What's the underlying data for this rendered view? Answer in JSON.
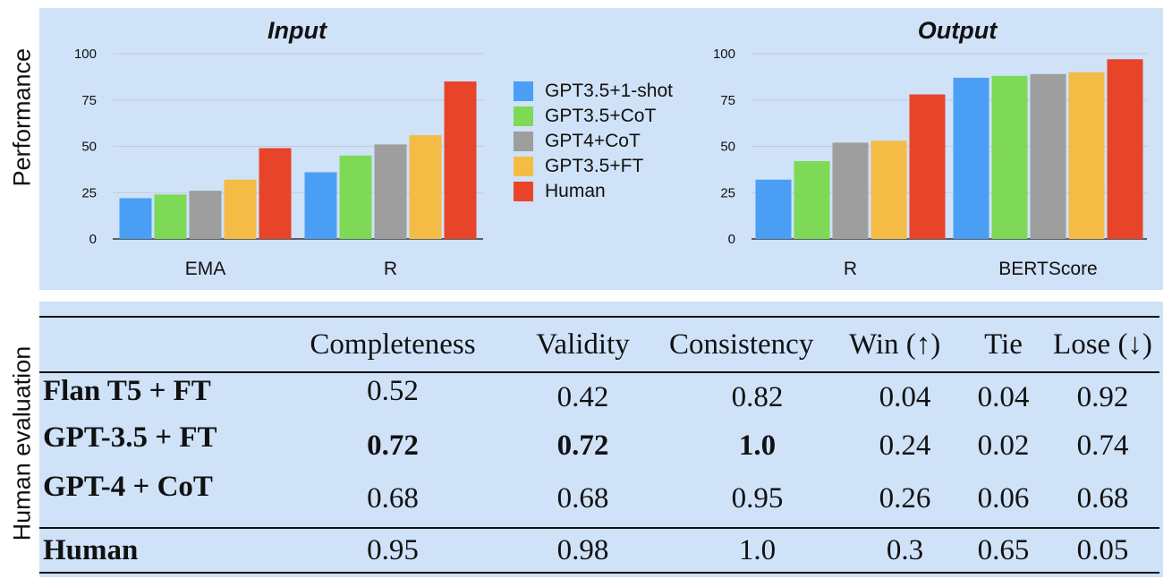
{
  "ylabel_top": "Performance",
  "ylabel_bottom": "Human evaluation",
  "legend": [
    {
      "label": "GPT3.5+1-shot",
      "color": "#4a9ff5"
    },
    {
      "label": "GPT3.5+CoT",
      "color": "#7ed957"
    },
    {
      "label": "GPT4+CoT",
      "color": "#9e9e9e"
    },
    {
      "label": "GPT3.5+FT",
      "color": "#f4bc45"
    },
    {
      "label": "Human",
      "color": "#e8442a"
    }
  ],
  "chart_data": [
    {
      "type": "bar",
      "title": "Input",
      "categories": [
        "EMA",
        "R"
      ],
      "ylabel": "Performance",
      "ylim": [
        0,
        100
      ],
      "yticks": [
        0,
        25,
        50,
        75,
        100
      ],
      "series": [
        {
          "name": "GPT3.5+1-shot",
          "values": [
            22,
            36
          ]
        },
        {
          "name": "GPT3.5+CoT",
          "values": [
            24,
            45
          ]
        },
        {
          "name": "GPT4+CoT",
          "values": [
            26,
            51
          ]
        },
        {
          "name": "GPT3.5+FT",
          "values": [
            32,
            56
          ]
        },
        {
          "name": "Human",
          "values": [
            49,
            85
          ]
        }
      ]
    },
    {
      "type": "bar",
      "title": "Output",
      "categories": [
        "R",
        "BERTScore"
      ],
      "ylim": [
        0,
        100
      ],
      "yticks": [
        0,
        25,
        50,
        75,
        100
      ],
      "series": [
        {
          "name": "GPT3.5+1-shot",
          "values": [
            32,
            87
          ]
        },
        {
          "name": "GPT3.5+CoT",
          "values": [
            42,
            88
          ]
        },
        {
          "name": "GPT4+CoT",
          "values": [
            52,
            89
          ]
        },
        {
          "name": "GPT3.5+FT",
          "values": [
            53,
            90
          ]
        },
        {
          "name": "Human",
          "values": [
            78,
            97
          ]
        }
      ]
    },
    {
      "type": "table",
      "columns": [
        "",
        "Completeness",
        "Validity",
        "Consistency",
        "Win (↑)",
        "Tie",
        "Lose (↓)"
      ],
      "rows": [
        {
          "name": "Flan T5 + FT",
          "values": [
            "0.52",
            "0.42",
            "0.82",
            "0.04",
            "0.04",
            "0.92"
          ]
        },
        {
          "name": "GPT-3.5 + FT",
          "values": [
            "0.72",
            "0.72",
            "1.0",
            "0.24",
            "0.02",
            "0.74"
          ]
        },
        {
          "name": "GPT-4 + CoT",
          "values": [
            "0.68",
            "0.68",
            "0.95",
            "0.26",
            "0.06",
            "0.68"
          ]
        },
        {
          "name": "Human",
          "values": [
            "0.95",
            "0.98",
            "1.0",
            "0.3",
            "0.65",
            "0.05"
          ]
        }
      ]
    }
  ]
}
